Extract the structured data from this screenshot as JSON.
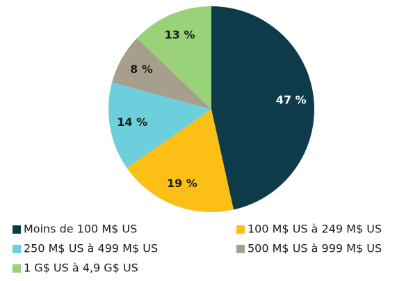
{
  "chart_data": {
    "type": "pie",
    "categories": [
      "Moins de 100 M$ US",
      "100 M$ US à 249 M$ US",
      "250 M$ US à 499 M$ US",
      "500 M$ US à 999 M$ US",
      "1 G$ US à 4,9 G$ US"
    ],
    "values": [
      47,
      19,
      14,
      8,
      13
    ],
    "value_labels": [
      "47 %",
      "19 %",
      "14 %",
      "8 %",
      "13 %"
    ],
    "colors": [
      "#0d3b4a",
      "#fbbf15",
      "#6dcfdc",
      "#a79e8c",
      "#9ad27a"
    ],
    "label_colors": [
      "#ffffff",
      "#1a1a1a",
      "#1a1a1a",
      "#1a1a1a",
      "#1a1a1a"
    ]
  }
}
